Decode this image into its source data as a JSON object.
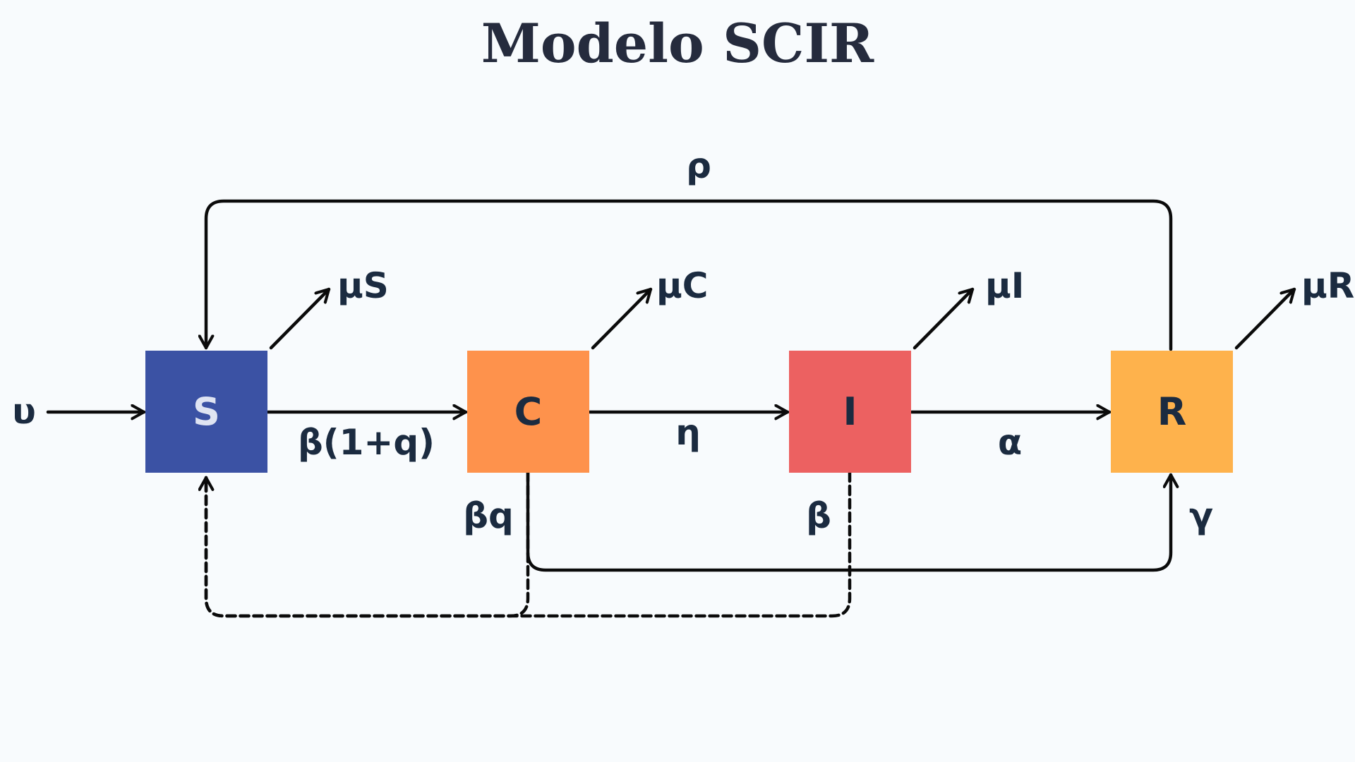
{
  "title": "Modelo SCIR",
  "compartments": {
    "s": {
      "label": "S",
      "color": "#3b52a4",
      "text_color": "#dfe4f2"
    },
    "c": {
      "label": "C",
      "color": "#fe924c",
      "text_color": "#1b2b40"
    },
    "i": {
      "label": "I",
      "color": "#ec6161",
      "text_color": "#1b2b40"
    },
    "r": {
      "label": "R",
      "color": "#feb24c",
      "text_color": "#1b2b40"
    }
  },
  "rates": {
    "inflow": "υ",
    "s_to_c": "β(1+q)",
    "c_to_i": "η",
    "i_to_r": "α",
    "r_to_s": "ρ",
    "c_to_r": "βq",
    "i_feedback": "β",
    "recovery": "γ",
    "death_s": "μS",
    "death_c": "μC",
    "death_i": "μI",
    "death_r": "μR"
  }
}
